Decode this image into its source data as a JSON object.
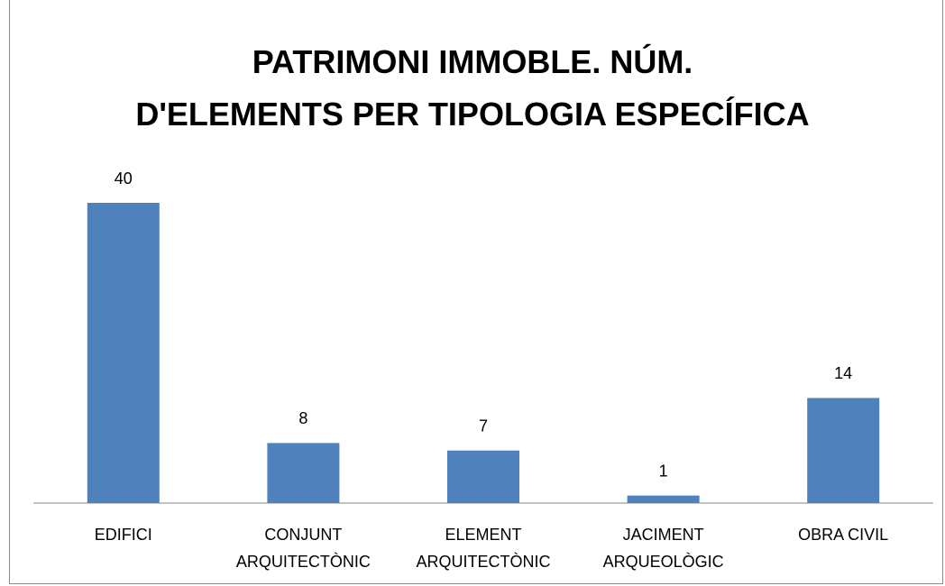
{
  "chart_data": {
    "type": "bar",
    "title": "PATRIMONI IMMOBLE. NÚM.\nD'ELEMENTS PER TIPOLOGIA ESPECÍFICA",
    "categories": [
      "EDIFICI",
      "CONJUNT\nARQUITECTÒNIC",
      "ELEMENT\nARQUITECTÒNIC",
      "JACIMENT\nARQUEOLÒGIC",
      "OBRA CIVIL"
    ],
    "values": [
      40,
      8,
      7,
      1,
      14
    ],
    "color": "#4f81bd"
  }
}
